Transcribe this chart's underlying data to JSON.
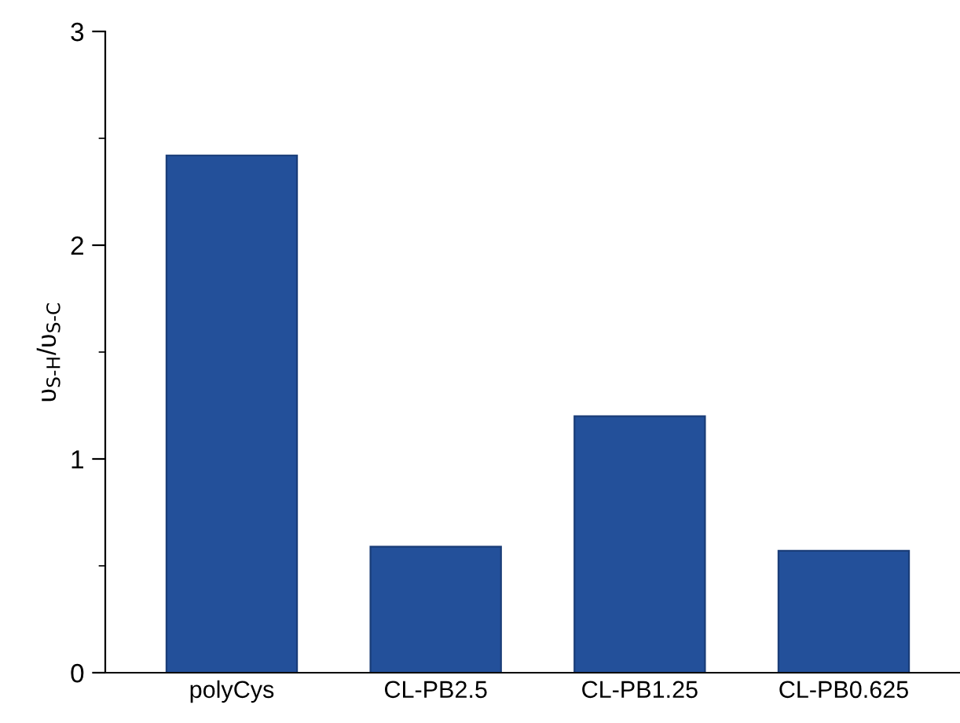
{
  "chart_data": {
    "type": "bar",
    "ylabel": "υ$_{S-H}$/υ$_{S-C}$",
    "categories": [
      "polyCys",
      "CL-PB2.5",
      "CL-PB1.25",
      "CL-PB0.625"
    ],
    "values": [
      2.42,
      0.59,
      1.2,
      0.57
    ],
    "color": "#23509a",
    "ylim": [
      0,
      3
    ],
    "yticks": [
      0,
      {
        "value": 0.5,
        "label": null
      },
      1,
      {
        "value": 1.5,
        "label": null
      },
      2,
      {
        "value": 2.5,
        "label": null
      },
      3
    ],
    "grid": false,
    "legend": false
  }
}
